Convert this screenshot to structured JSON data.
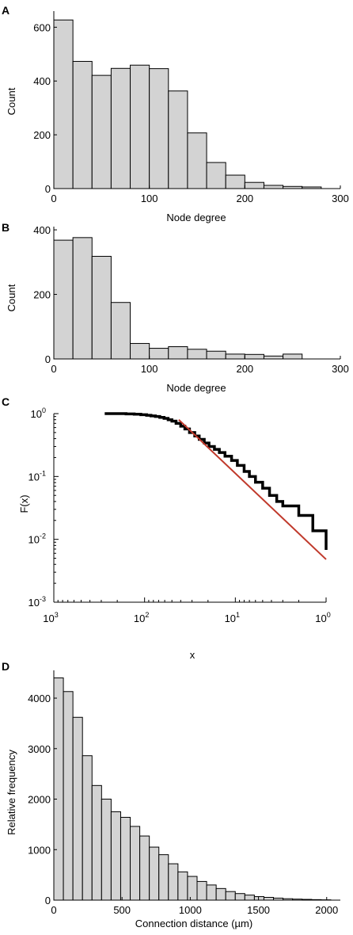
{
  "colors": {
    "bar_fill": "#d3d3d3",
    "bar_edge": "#000000",
    "step": "#000000",
    "fit_line": "#c0392b",
    "background": "#ffffff"
  },
  "chart_data": [
    {
      "panel": "A",
      "type": "bar",
      "title": "",
      "xlabel": "Node degree",
      "ylabel": "Count",
      "xlim": [
        0,
        300
      ],
      "ylim": [
        0,
        660
      ],
      "xticks": [
        "0",
        "100",
        "200",
        "300"
      ],
      "yticks": [
        "0",
        "200",
        "400",
        "600"
      ],
      "bin_width": 20,
      "bin_starts": [
        0,
        20,
        40,
        60,
        80,
        100,
        120,
        140,
        160,
        180,
        200,
        220,
        240,
        260
      ],
      "values": [
        627,
        473,
        421,
        447,
        459,
        446,
        363,
        207,
        97,
        50,
        23,
        12,
        8,
        6
      ],
      "grid": false,
      "legend": "none"
    },
    {
      "panel": "B",
      "type": "bar",
      "title": "",
      "xlabel": "Node degree",
      "ylabel": "Count",
      "xlim": [
        0,
        300
      ],
      "ylim": [
        0,
        410
      ],
      "xticks": [
        "0",
        "100",
        "200",
        "300"
      ],
      "yticks": [
        "0",
        "200",
        "400"
      ],
      "bin_width": 20,
      "bin_starts": [
        0,
        20,
        40,
        60,
        80,
        100,
        120,
        140,
        160,
        180,
        200,
        220,
        240
      ],
      "values": [
        368,
        376,
        318,
        175,
        48,
        33,
        38,
        30,
        24,
        15,
        14,
        9,
        15
      ],
      "grid": false,
      "legend": "none"
    },
    {
      "panel": "C",
      "type": "line",
      "title": "",
      "xlabel": "x",
      "ylabel": "F(x)",
      "xscale": "log",
      "yscale": "log",
      "x_axis_reversed": true,
      "xlim": [
        1000,
        1
      ],
      "ylim": [
        0.001,
        1
      ],
      "xticks": [
        {
          "base": "10",
          "exp": "3"
        },
        {
          "base": "10",
          "exp": "2"
        },
        {
          "base": "10",
          "exp": "1"
        },
        {
          "base": "10",
          "exp": "0"
        }
      ],
      "yticks": [
        {
          "base": "10",
          "exp": "0"
        },
        {
          "base": "10",
          "exp": "-1"
        },
        {
          "base": "10",
          "exp": "-2"
        },
        {
          "base": "10",
          "exp": "-3"
        }
      ],
      "series": [
        {
          "kind": "ccdf-step",
          "x": [
            275,
            200,
            160,
            130,
            110,
            95,
            85,
            76,
            68,
            61,
            55,
            50,
            45,
            40,
            36,
            32,
            28,
            25,
            22,
            19.5,
            17,
            15,
            13,
            11,
            9.5,
            8,
            7,
            6,
            5,
            4.2,
            3.5,
            3.0,
            2.5,
            2.0,
            1.7,
            1.4,
            1.2,
            1.0
          ],
          "y": [
            1.0,
            1.0,
            0.99,
            0.98,
            0.96,
            0.94,
            0.92,
            0.9,
            0.87,
            0.84,
            0.8,
            0.76,
            0.7,
            0.63,
            0.57,
            0.5,
            0.44,
            0.39,
            0.34,
            0.3,
            0.27,
            0.24,
            0.21,
            0.18,
            0.15,
            0.12,
            0.1,
            0.081,
            0.065,
            0.05,
            0.04,
            0.034,
            0.034,
            0.024,
            0.024,
            0.0137,
            0.0137,
            0.0068
          ]
        },
        {
          "kind": "power-law-fit",
          "x": [
            42,
            1.0
          ],
          "y": [
            0.8,
            0.0048
          ]
        }
      ],
      "grid": false,
      "legend": "none"
    },
    {
      "panel": "D",
      "type": "bar",
      "title": "",
      "xlabel": "Connection distance (µm)",
      "ylabel": "Relative frequency",
      "xlim": [
        0,
        2100
      ],
      "ylim": [
        0,
        4550
      ],
      "xticks": [
        "0",
        "500",
        "1000",
        "1500",
        "2000"
      ],
      "yticks": [
        "0",
        "1000",
        "2000",
        "3000",
        "4000"
      ],
      "bin_width": 70,
      "bin_starts": [
        0,
        70,
        140,
        210,
        280,
        350,
        420,
        490,
        560,
        630,
        700,
        770,
        840,
        910,
        980,
        1050,
        1120,
        1190,
        1260,
        1330,
        1400,
        1470,
        1540,
        1610,
        1680,
        1750,
        1820,
        1890,
        1960
      ],
      "values": [
        4400,
        4130,
        3620,
        2860,
        2270,
        2000,
        1750,
        1640,
        1460,
        1270,
        1050,
        900,
        720,
        560,
        470,
        370,
        300,
        230,
        170,
        130,
        100,
        70,
        55,
        40,
        28,
        20,
        15,
        10,
        6
      ],
      "grid": false,
      "legend": "none"
    }
  ]
}
